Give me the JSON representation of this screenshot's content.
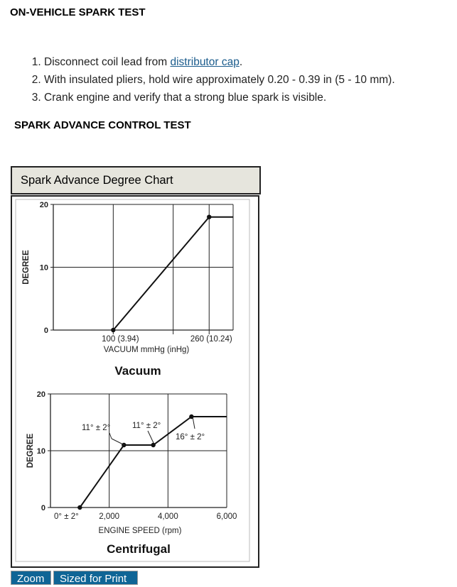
{
  "heading1": "ON-VEHICLE SPARK TEST",
  "steps": [
    {
      "pre": "Disconnect coil lead from ",
      "link": "distributor cap",
      "post": "."
    },
    {
      "pre": "With insulated pliers, hold wire approximately 0.20 - 0.39 in (5 - 10 mm).",
      "link": "",
      "post": ""
    },
    {
      "pre": "Crank engine and verify that a strong blue spark is visible.",
      "link": "",
      "post": ""
    }
  ],
  "heading2": "SPARK ADVANCE CONTROL TEST",
  "chart_caption": "Spark Advance Degree Chart",
  "buttons": {
    "zoom": "Zoom",
    "print": "Sized for Print"
  },
  "chart_data": [
    {
      "type": "line",
      "title": "Vacuum",
      "ylabel": "DEGREE",
      "xlabel": "VACUUM mmHg (inHg)",
      "xtick_labels": [
        "100 (3.94)",
        "260 (10.24)"
      ],
      "xticks": [
        100,
        260
      ],
      "yticks": [
        0,
        10,
        20
      ],
      "ylim": [
        0,
        20
      ],
      "xlim": [
        0,
        300
      ],
      "grid": true,
      "x": [
        100,
        260,
        300
      ],
      "y": [
        0,
        18,
        18
      ]
    },
    {
      "type": "line",
      "title": "Centrifugal",
      "ylabel": "DEGREE",
      "xlabel": "ENGINE SPEED (rpm)",
      "xtick_labels": [
        "2,000",
        "4,000",
        "6,000"
      ],
      "xticks": [
        2000,
        4000,
        6000
      ],
      "yticks": [
        0,
        10,
        20
      ],
      "ylim": [
        0,
        20
      ],
      "xlim": [
        0,
        6000
      ],
      "grid": true,
      "x": [
        1000,
        2500,
        3500,
        4800,
        6000
      ],
      "y": [
        0,
        11,
        11,
        16,
        16
      ],
      "annotations": [
        "0° ± 2°",
        "11° ± 2°",
        "11° ± 2°",
        "16° ± 2°"
      ]
    }
  ]
}
